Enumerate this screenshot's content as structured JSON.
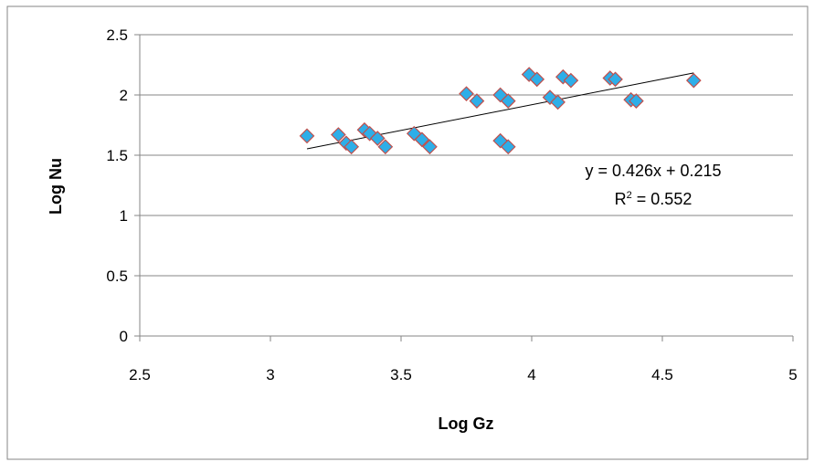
{
  "chart_data": {
    "type": "scatter",
    "xlabel": "Log Gz",
    "ylabel": "Log Nu",
    "xlim": [
      2.5,
      5
    ],
    "ylim": [
      0,
      2.5
    ],
    "x_ticks": [
      "2.5",
      "3",
      "3.5",
      "4",
      "4.5",
      "5"
    ],
    "y_ticks": [
      "0",
      "0.5",
      "1",
      "1.5",
      "2",
      "2.5"
    ],
    "grid": "horizontal",
    "legend": "none",
    "marker": "diamond",
    "colors": {
      "marker_fill": "#2eaee8",
      "marker_edge": "#c0504d",
      "trendline": "#000000",
      "gridline": "#868686"
    },
    "series": [
      {
        "points": [
          [
            3.14,
            1.66
          ],
          [
            3.26,
            1.67
          ],
          [
            3.29,
            1.6
          ],
          [
            3.31,
            1.57
          ],
          [
            3.36,
            1.71
          ],
          [
            3.38,
            1.68
          ],
          [
            3.41,
            1.64
          ],
          [
            3.44,
            1.57
          ],
          [
            3.55,
            1.68
          ],
          [
            3.58,
            1.63
          ],
          [
            3.61,
            1.57
          ],
          [
            3.75,
            2.01
          ],
          [
            3.79,
            1.95
          ],
          [
            3.88,
            2.0
          ],
          [
            3.88,
            1.62
          ],
          [
            3.91,
            1.95
          ],
          [
            3.91,
            1.57
          ],
          [
            3.99,
            2.17
          ],
          [
            4.02,
            2.13
          ],
          [
            4.07,
            1.98
          ],
          [
            4.1,
            1.94
          ],
          [
            4.12,
            2.15
          ],
          [
            4.15,
            2.12
          ],
          [
            4.3,
            2.14
          ],
          [
            4.32,
            2.13
          ],
          [
            4.38,
            1.96
          ],
          [
            4.4,
            1.95
          ],
          [
            4.62,
            2.12
          ]
        ]
      }
    ],
    "trendline": {
      "slope": 0.426,
      "intercept": 0.215,
      "x_range": [
        3.14,
        4.62
      ]
    },
    "annotations": {
      "equation": "y = 0.426x + 0.215",
      "r2_prefix": "R",
      "r2_sup": "2",
      "r2_value": " = 0.552"
    }
  }
}
